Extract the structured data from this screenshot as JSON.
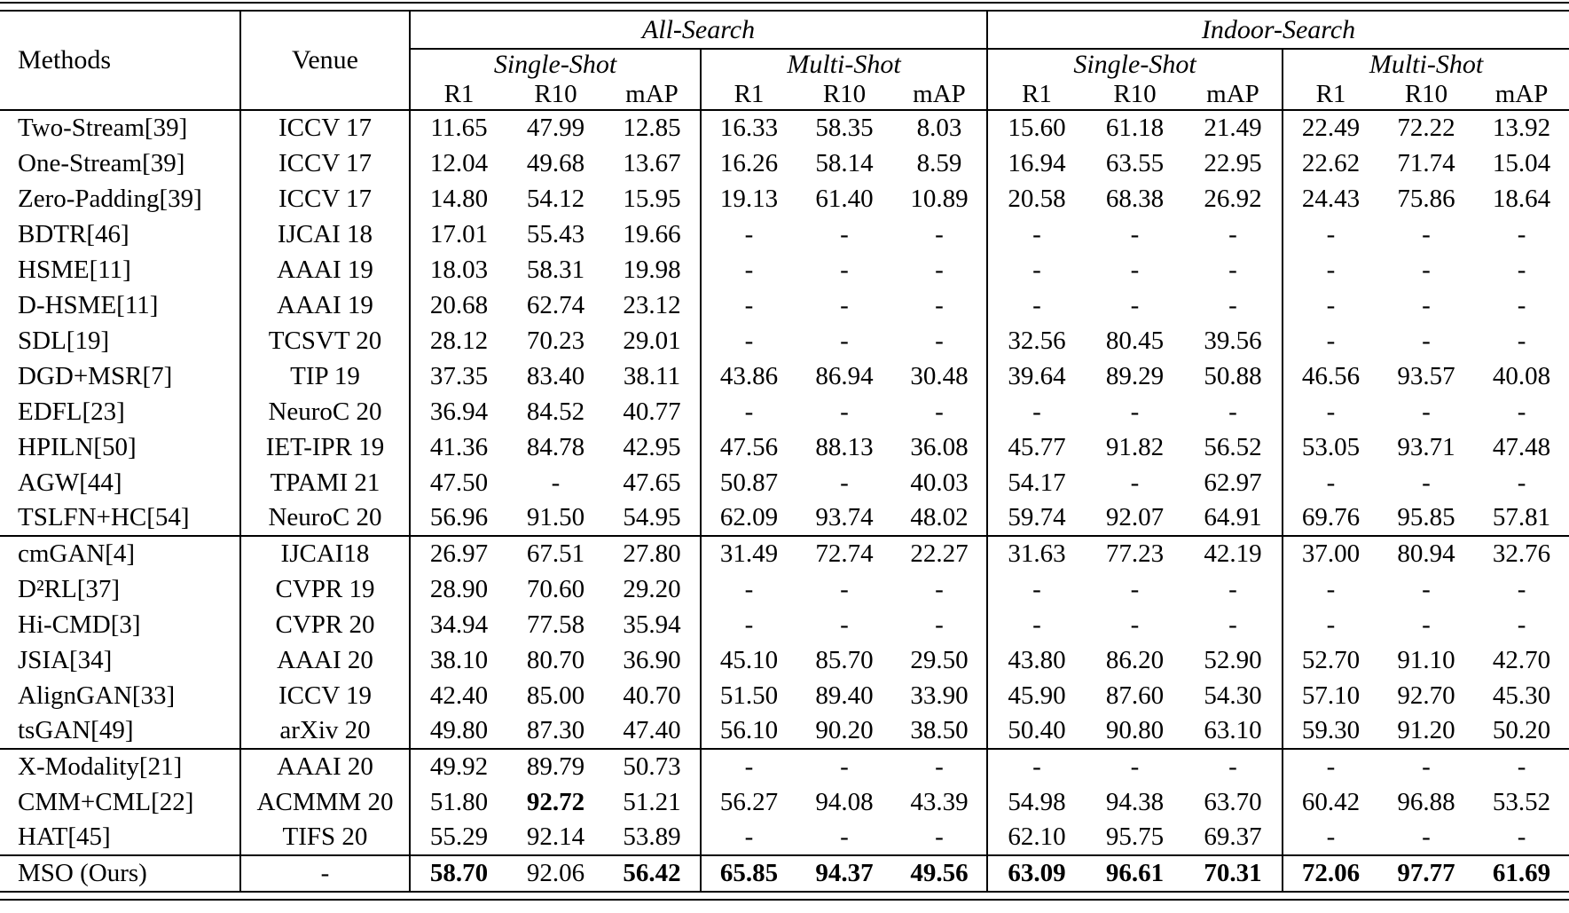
{
  "colors": {
    "ink": "#000000",
    "background": "#ffffff"
  },
  "header": {
    "methods": "Methods",
    "venue": "Venue",
    "groups": [
      "All-Search",
      "Indoor-Search"
    ],
    "subgroups": [
      "Single-Shot",
      "Multi-Shot",
      "Single-Shot",
      "Multi-Shot"
    ],
    "metrics": [
      "R1",
      "R10",
      "mAP"
    ]
  },
  "body": {
    "groups": [
      {
        "rows": [
          {
            "method": "Two-Stream[39]",
            "venue": "ICCV 17",
            "values": [
              "11.65",
              "47.99",
              "12.85",
              "16.33",
              "58.35",
              "8.03",
              "15.60",
              "61.18",
              "21.49",
              "22.49",
              "72.22",
              "13.92"
            ],
            "bold": []
          },
          {
            "method": "One-Stream[39]",
            "venue": "ICCV 17",
            "values": [
              "12.04",
              "49.68",
              "13.67",
              "16.26",
              "58.14",
              "8.59",
              "16.94",
              "63.55",
              "22.95",
              "22.62",
              "71.74",
              "15.04"
            ],
            "bold": []
          },
          {
            "method": "Zero-Padding[39]",
            "venue": "ICCV 17",
            "values": [
              "14.80",
              "54.12",
              "15.95",
              "19.13",
              "61.40",
              "10.89",
              "20.58",
              "68.38",
              "26.92",
              "24.43",
              "75.86",
              "18.64"
            ],
            "bold": []
          },
          {
            "method": "BDTR[46]",
            "venue": "IJCAI 18",
            "values": [
              "17.01",
              "55.43",
              "19.66",
              "-",
              "-",
              "-",
              "-",
              "-",
              "-",
              "-",
              "-",
              "-"
            ],
            "bold": []
          },
          {
            "method": "HSME[11]",
            "venue": "AAAI 19",
            "values": [
              "18.03",
              "58.31",
              "19.98",
              "-",
              "-",
              "-",
              "-",
              "-",
              "-",
              "-",
              "-",
              "-"
            ],
            "bold": []
          },
          {
            "method": "D-HSME[11]",
            "venue": "AAAI 19",
            "values": [
              "20.68",
              "62.74",
              "23.12",
              "-",
              "-",
              "-",
              "-",
              "-",
              "-",
              "-",
              "-",
              "-"
            ],
            "bold": []
          },
          {
            "method": "SDL[19]",
            "venue": "TCSVT 20",
            "values": [
              "28.12",
              "70.23",
              "29.01",
              "-",
              "-",
              "-",
              "32.56",
              "80.45",
              "39.56",
              "-",
              "-",
              "-"
            ],
            "bold": []
          },
          {
            "method": "DGD+MSR[7]",
            "venue": "TIP 19",
            "values": [
              "37.35",
              "83.40",
              "38.11",
              "43.86",
              "86.94",
              "30.48",
              "39.64",
              "89.29",
              "50.88",
              "46.56",
              "93.57",
              "40.08"
            ],
            "bold": []
          },
          {
            "method": "EDFL[23]",
            "venue": "NeuroC 20",
            "values": [
              "36.94",
              "84.52",
              "40.77",
              "-",
              "-",
              "-",
              "-",
              "-",
              "-",
              "-",
              "-",
              "-"
            ],
            "bold": []
          },
          {
            "method": "HPILN[50]",
            "venue": "IET-IPR 19",
            "values": [
              "41.36",
              "84.78",
              "42.95",
              "47.56",
              "88.13",
              "36.08",
              "45.77",
              "91.82",
              "56.52",
              "53.05",
              "93.71",
              "47.48"
            ],
            "bold": []
          },
          {
            "method": "AGW[44]",
            "venue": "TPAMI 21",
            "values": [
              "47.50",
              "-",
              "47.65",
              "50.87",
              "-",
              "40.03",
              "54.17",
              "-",
              "62.97",
              "-",
              "-",
              "-"
            ],
            "bold": []
          },
          {
            "method": "TSLFN+HC[54]",
            "venue": "NeuroC 20",
            "values": [
              "56.96",
              "91.50",
              "54.95",
              "62.09",
              "93.74",
              "48.02",
              "59.74",
              "92.07",
              "64.91",
              "69.76",
              "95.85",
              "57.81"
            ],
            "bold": []
          }
        ]
      },
      {
        "rows": [
          {
            "method": "cmGAN[4]",
            "venue": "IJCAI18",
            "values": [
              "26.97",
              "67.51",
              "27.80",
              "31.49",
              "72.74",
              "22.27",
              "31.63",
              "77.23",
              "42.19",
              "37.00",
              "80.94",
              "32.76"
            ],
            "bold": []
          },
          {
            "method": "D²RL[37]",
            "venue": "CVPR 19",
            "values": [
              "28.90",
              "70.60",
              "29.20",
              "-",
              "-",
              "-",
              "-",
              "-",
              "-",
              "-",
              "-",
              "-"
            ],
            "bold": []
          },
          {
            "method": "Hi-CMD[3]",
            "venue": "CVPR 20",
            "values": [
              "34.94",
              "77.58",
              "35.94",
              "-",
              "-",
              "-",
              "-",
              "-",
              "-",
              "-",
              "-",
              "-"
            ],
            "bold": []
          },
          {
            "method": "JSIA[34]",
            "venue": "AAAI 20",
            "values": [
              "38.10",
              "80.70",
              "36.90",
              "45.10",
              "85.70",
              "29.50",
              "43.80",
              "86.20",
              "52.90",
              "52.70",
              "91.10",
              "42.70"
            ],
            "bold": []
          },
          {
            "method": "AlignGAN[33]",
            "venue": "ICCV 19",
            "values": [
              "42.40",
              "85.00",
              "40.70",
              "51.50",
              "89.40",
              "33.90",
              "45.90",
              "87.60",
              "54.30",
              "57.10",
              "92.70",
              "45.30"
            ],
            "bold": []
          },
          {
            "method": "tsGAN[49]",
            "venue": "arXiv 20",
            "values": [
              "49.80",
              "87.30",
              "47.40",
              "56.10",
              "90.20",
              "38.50",
              "50.40",
              "90.80",
              "63.10",
              "59.30",
              "91.20",
              "50.20"
            ],
            "bold": []
          }
        ]
      },
      {
        "rows": [
          {
            "method": "X-Modality[21]",
            "venue": "AAAI 20",
            "values": [
              "49.92",
              "89.79",
              "50.73",
              "-",
              "-",
              "-",
              "-",
              "-",
              "-",
              "-",
              "-",
              "-"
            ],
            "bold": []
          },
          {
            "method": "CMM+CML[22]",
            "venue": "ACMMM 20",
            "values": [
              "51.80",
              "92.72",
              "51.21",
              "56.27",
              "94.08",
              "43.39",
              "54.98",
              "94.38",
              "63.70",
              "60.42",
              "96.88",
              "53.52"
            ],
            "bold": [
              1
            ]
          },
          {
            "method": "HAT[45]",
            "venue": "TIFS 20",
            "values": [
              "55.29",
              "92.14",
              "53.89",
              "-",
              "-",
              "-",
              "62.10",
              "95.75",
              "69.37",
              "-",
              "-",
              "-"
            ],
            "bold": []
          }
        ]
      },
      {
        "rows": [
          {
            "method": "MSO (Ours)",
            "venue": "-",
            "values": [
              "58.70",
              "92.06",
              "56.42",
              "65.85",
              "94.37",
              "49.56",
              "63.09",
              "96.61",
              "70.31",
              "72.06",
              "97.77",
              "61.69"
            ],
            "bold": [
              0,
              2,
              3,
              4,
              5,
              6,
              7,
              8,
              9,
              10,
              11
            ]
          }
        ]
      }
    ]
  }
}
